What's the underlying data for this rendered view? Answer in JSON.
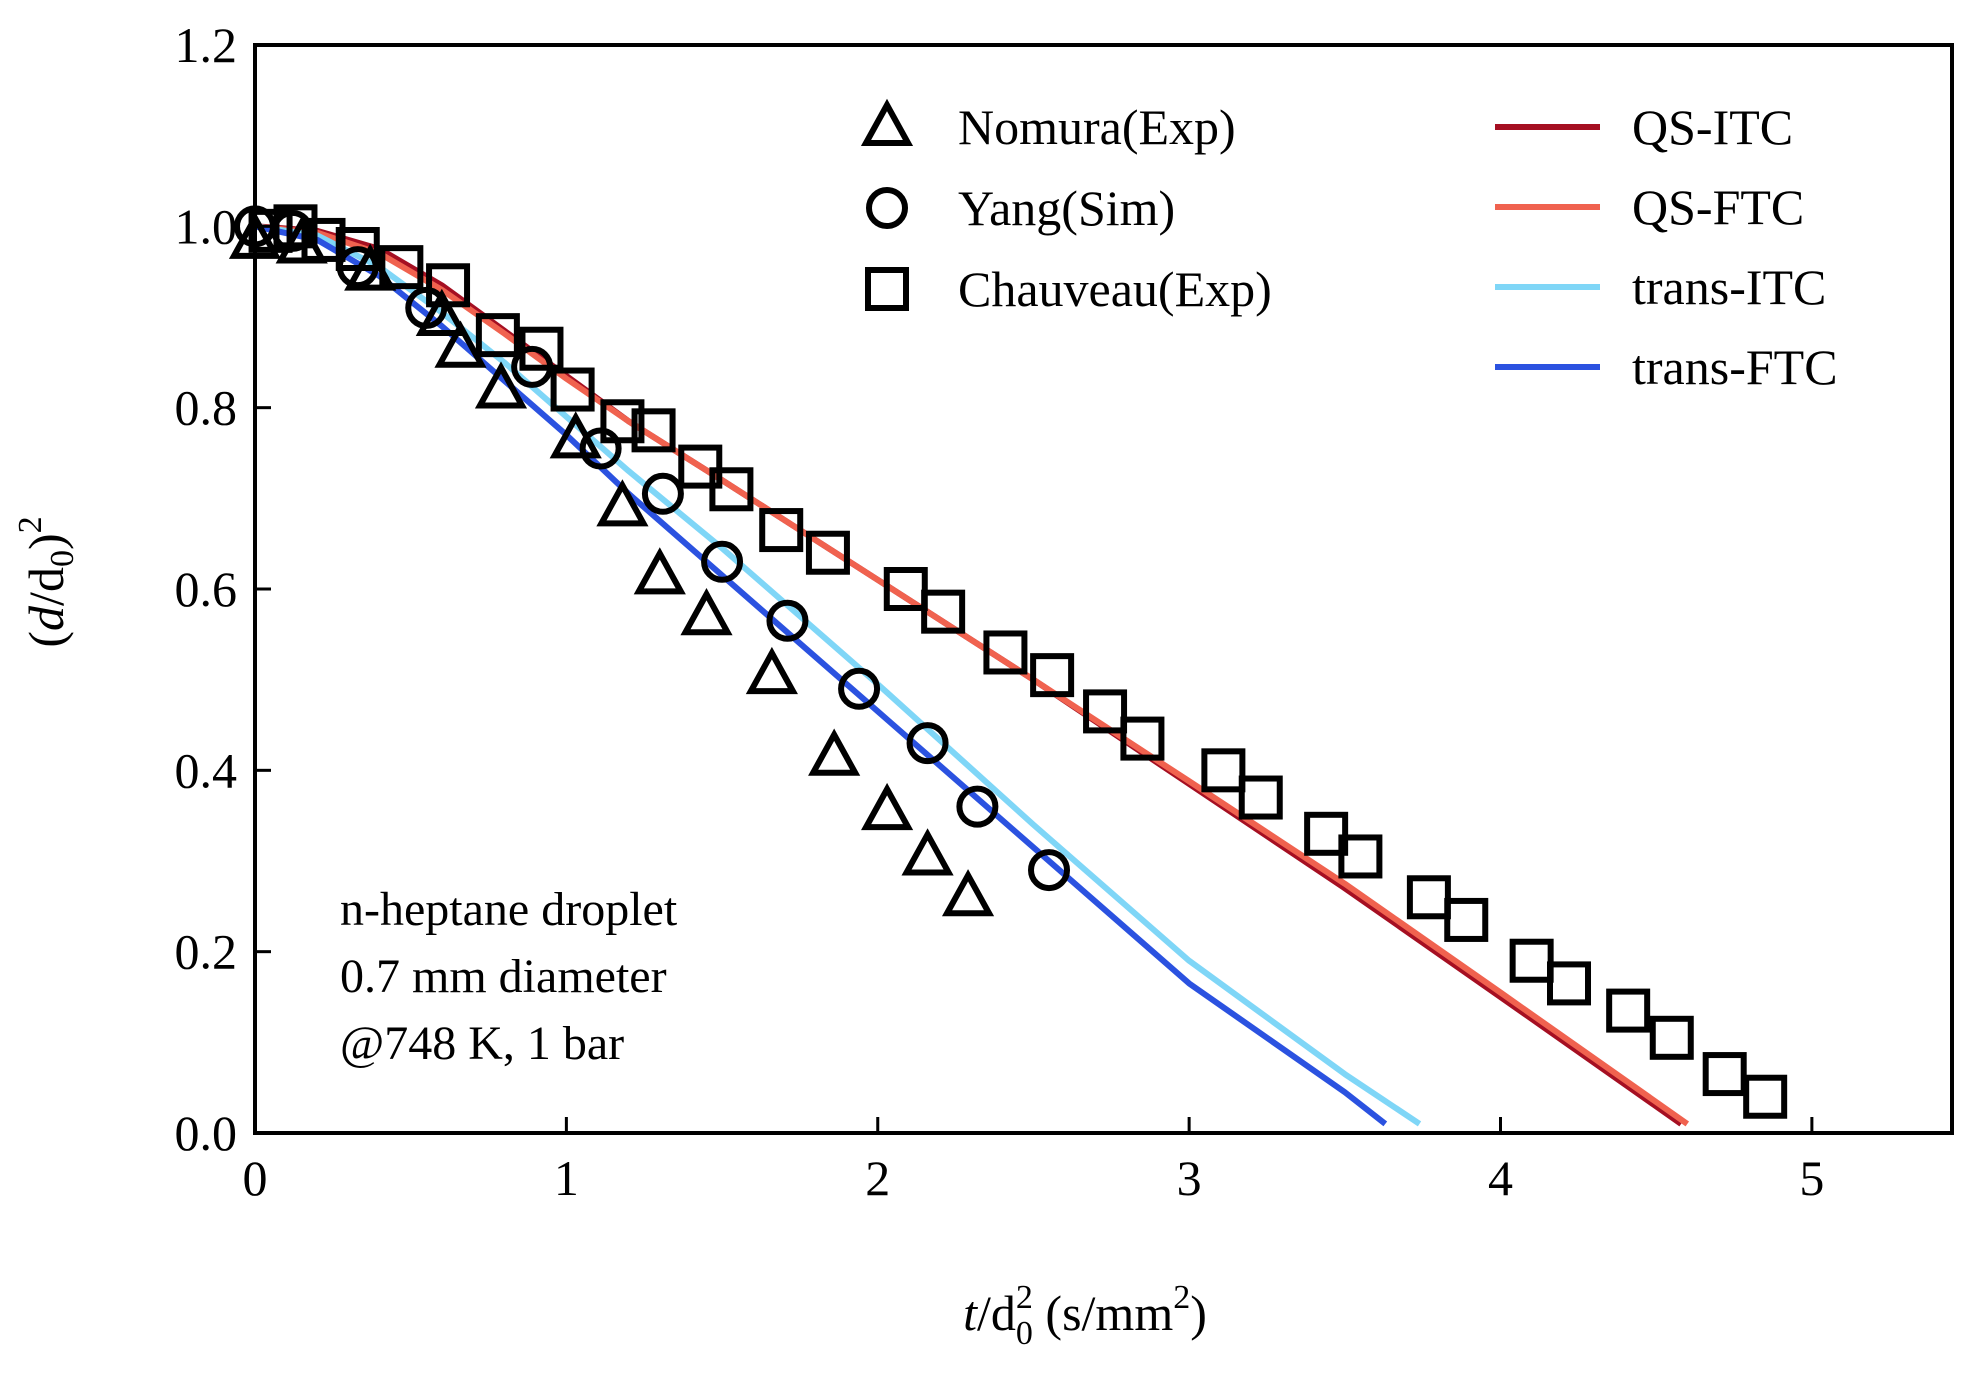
{
  "chart_data": {
    "type": "scatter",
    "xlabel": {
      "italic": "t",
      "rest": "/d",
      "sup": "2",
      "sub": "0",
      "unit": " (s/mm",
      "unit_sup": "2",
      "unit_close": ")"
    },
    "ylabel": {
      "open": "(",
      "italic": "d",
      "rest": "/d",
      "sub": "0",
      "close": ")",
      "sup": "2"
    },
    "xlim": [
      0,
      5.45
    ],
    "ylim": [
      0,
      1.2
    ],
    "x_ticks": [
      "0",
      "1",
      "2",
      "3",
      "4",
      "5"
    ],
    "y_ticks": [
      "0.0",
      "0.2",
      "0.4",
      "0.6",
      "0.8",
      "1.0",
      "1.2"
    ],
    "grid": false,
    "legend_markers": {
      "placement": "top-center"
    },
    "legend_lines": {
      "placement": "top-right"
    },
    "annotation": [
      "n-heptane droplet",
      "0.7 mm diameter",
      "@748 K, 1 bar"
    ],
    "scatter_series": [
      {
        "name": "Nomura(Exp)",
        "marker": "triangle",
        "color": "#000000",
        "x": [
          0.0,
          0.15,
          0.37,
          0.6,
          0.66,
          0.79,
          1.03,
          1.18,
          1.3,
          1.45,
          1.66,
          1.86,
          2.03,
          2.16,
          2.29
        ],
        "y": [
          0.985,
          0.98,
          0.95,
          0.9,
          0.865,
          0.82,
          0.765,
          0.69,
          0.615,
          0.57,
          0.505,
          0.415,
          0.355,
          0.305,
          0.26
        ]
      },
      {
        "name": "Yang(Sim)",
        "marker": "circle",
        "color": "#000000",
        "x": [
          0.0,
          0.12,
          0.33,
          0.55,
          0.89,
          1.11,
          1.31,
          1.5,
          1.71,
          1.94,
          2.16,
          2.32,
          2.55
        ],
        "y": [
          1.0,
          0.995,
          0.955,
          0.91,
          0.845,
          0.755,
          0.705,
          0.63,
          0.565,
          0.49,
          0.43,
          0.36,
          0.29
        ]
      },
      {
        "name": "Chauveau(Exp)",
        "marker": "square",
        "color": "#000000",
        "x": [
          0.05,
          0.13,
          0.22,
          0.33,
          0.47,
          0.62,
          0.78,
          0.92,
          1.02,
          1.18,
          1.28,
          1.43,
          1.53,
          1.69,
          1.84,
          2.09,
          2.21,
          2.41,
          2.56,
          2.73,
          2.85,
          3.11,
          3.23,
          3.44,
          3.55,
          3.77,
          3.89,
          4.1,
          4.22,
          4.41,
          4.55,
          4.72,
          4.85
        ],
        "y": [
          0.995,
          1.0,
          0.985,
          0.975,
          0.955,
          0.935,
          0.88,
          0.865,
          0.82,
          0.785,
          0.775,
          0.735,
          0.71,
          0.665,
          0.64,
          0.6,
          0.575,
          0.53,
          0.505,
          0.465,
          0.435,
          0.4,
          0.37,
          0.33,
          0.305,
          0.26,
          0.235,
          0.19,
          0.165,
          0.135,
          0.105,
          0.065,
          0.04
        ]
      }
    ],
    "line_series": [
      {
        "name": "QS-ITC",
        "color": "#a50f22",
        "x": [
          0.0,
          0.2,
          0.4,
          0.6,
          0.8,
          1.0,
          1.2,
          1.5,
          2.0,
          2.5,
          3.0,
          3.5,
          4.0,
          4.58
        ],
        "y": [
          1.0,
          0.995,
          0.975,
          0.935,
          0.885,
          0.835,
          0.785,
          0.72,
          0.61,
          0.5,
          0.385,
          0.27,
          0.15,
          0.01
        ]
      },
      {
        "name": "QS-FTC",
        "color": "#f0624f",
        "x": [
          0.0,
          0.2,
          0.4,
          0.6,
          0.8,
          1.0,
          1.2,
          1.5,
          2.0,
          2.5,
          3.0,
          3.5,
          4.0,
          4.6
        ],
        "y": [
          1.0,
          0.993,
          0.97,
          0.93,
          0.882,
          0.832,
          0.785,
          0.72,
          0.61,
          0.5,
          0.388,
          0.275,
          0.155,
          0.01
        ]
      },
      {
        "name": "trans-ITC",
        "color": "#7fd6f7",
        "x": [
          0.0,
          0.2,
          0.4,
          0.6,
          0.8,
          1.0,
          1.2,
          1.5,
          2.0,
          2.5,
          3.0,
          3.5,
          3.74
        ],
        "y": [
          1.0,
          0.99,
          0.955,
          0.905,
          0.85,
          0.79,
          0.73,
          0.645,
          0.495,
          0.34,
          0.19,
          0.065,
          0.01
        ]
      },
      {
        "name": "trans-FTC",
        "color": "#2b52e0",
        "x": [
          0.0,
          0.2,
          0.4,
          0.6,
          0.8,
          1.0,
          1.2,
          1.5,
          2.0,
          2.5,
          3.0,
          3.5,
          3.63
        ],
        "y": [
          1.0,
          0.985,
          0.945,
          0.89,
          0.83,
          0.77,
          0.705,
          0.615,
          0.465,
          0.315,
          0.165,
          0.045,
          0.01
        ]
      }
    ]
  }
}
